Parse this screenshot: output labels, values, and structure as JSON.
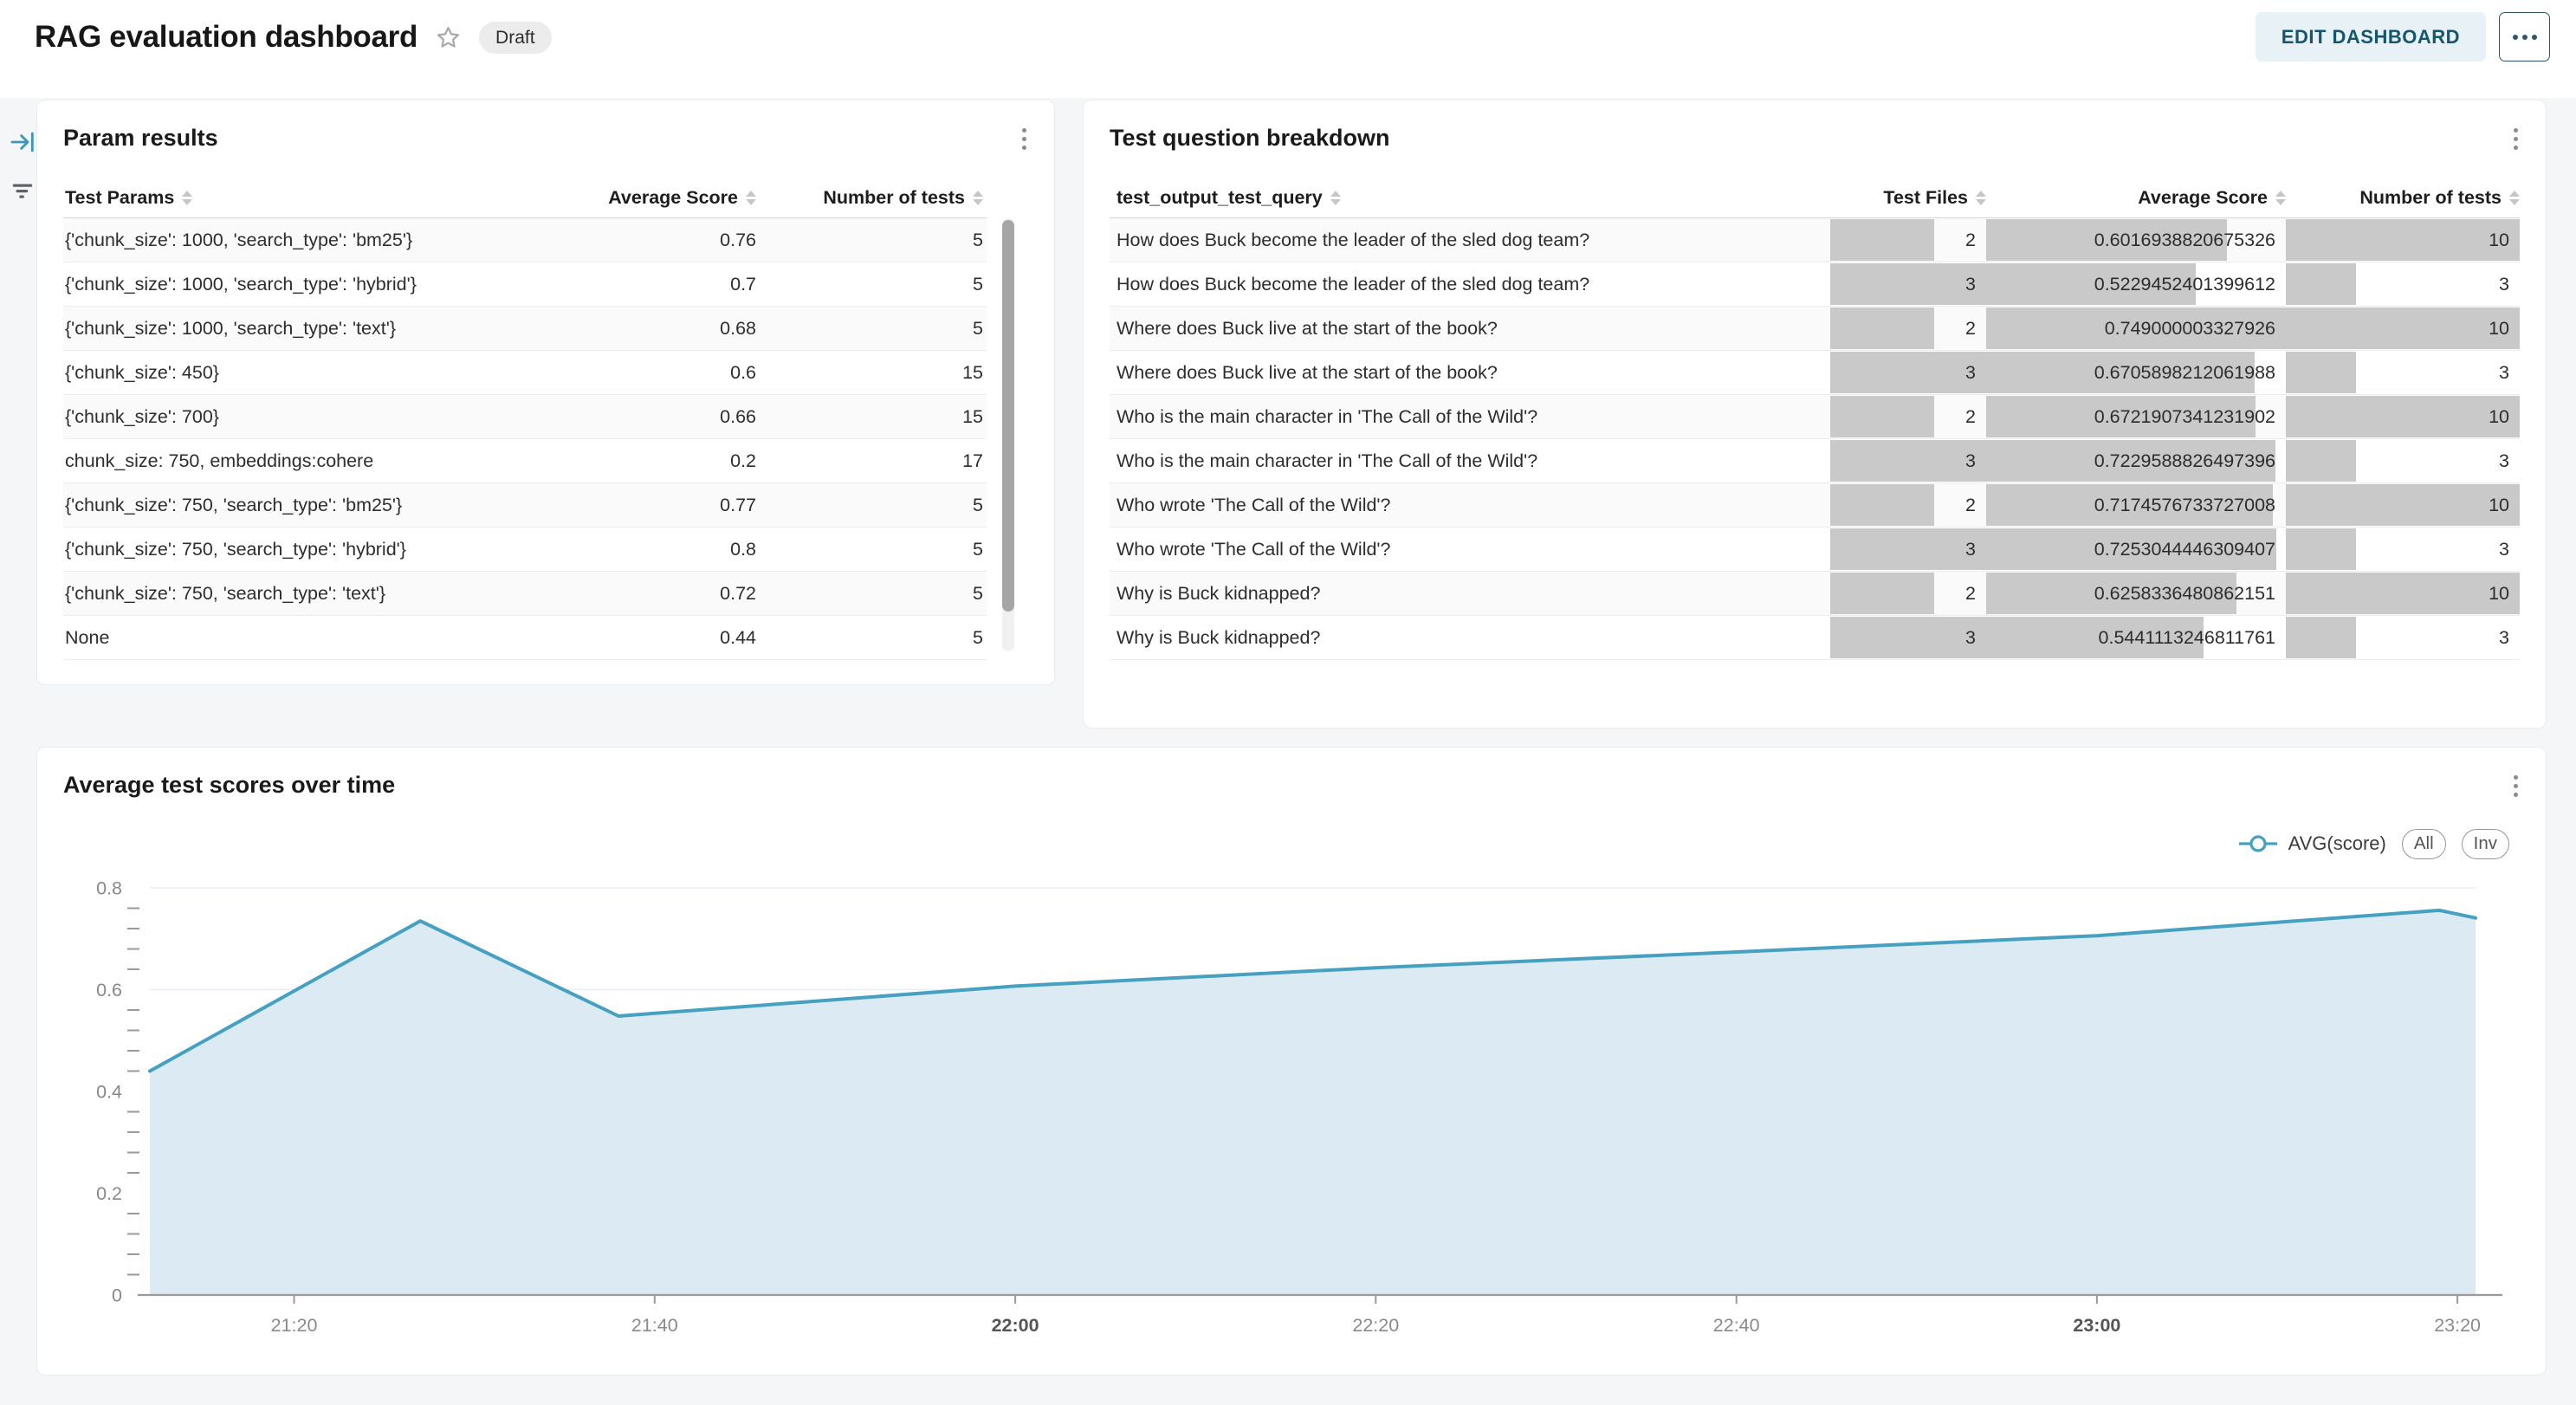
{
  "header": {
    "title": "RAG evaluation dashboard",
    "status_badge": "Draft",
    "edit_button": "EDIT DASHBOARD",
    "more_button": "more-options"
  },
  "sidebar": {
    "icons": [
      {
        "name": "collapse-panel-icon"
      },
      {
        "name": "filter-icon"
      }
    ]
  },
  "param_results": {
    "title": "Param results",
    "columns": {
      "c1": "Test Params",
      "c2": "Average Score",
      "c3": "Number of tests"
    },
    "rows": [
      {
        "params": "{'chunk_size': 1000, 'search_type': 'bm25'}",
        "avg_score": "0.76",
        "num_tests": "5"
      },
      {
        "params": "{'chunk_size': 1000, 'search_type': 'hybrid'}",
        "avg_score": "0.7",
        "num_tests": "5"
      },
      {
        "params": "{'chunk_size': 1000, 'search_type': 'text'}",
        "avg_score": "0.68",
        "num_tests": "5"
      },
      {
        "params": "{'chunk_size': 450}",
        "avg_score": "0.6",
        "num_tests": "15"
      },
      {
        "params": "{'chunk_size': 700}",
        "avg_score": "0.66",
        "num_tests": "15"
      },
      {
        "params": "chunk_size: 750, embeddings:cohere",
        "avg_score": "0.2",
        "num_tests": "17"
      },
      {
        "params": "{'chunk_size': 750, 'search_type': 'bm25'}",
        "avg_score": "0.77",
        "num_tests": "5"
      },
      {
        "params": "{'chunk_size': 750, 'search_type': 'hybrid'}",
        "avg_score": "0.8",
        "num_tests": "5"
      },
      {
        "params": "{'chunk_size': 750, 'search_type': 'text'}",
        "avg_score": "0.72",
        "num_tests": "5"
      },
      {
        "params": "None",
        "avg_score": "0.44",
        "num_tests": "5"
      }
    ]
  },
  "test_question_breakdown": {
    "title": "Test question breakdown",
    "columns": {
      "c1": "test_output_test_query",
      "c2": "Test Files",
      "c3": "Average Score",
      "c4": "Number of tests"
    },
    "bar_max": {
      "test_files": 3,
      "avg_score": 0.749000003327926,
      "num_tests": 10
    },
    "rows": [
      {
        "query": "How does Buck become the leader of the sled dog team?",
        "test_files": "2",
        "avg_score": "0.6016938820675326",
        "num_tests": "10"
      },
      {
        "query": "How does Buck become the leader of the sled dog team?",
        "test_files": "3",
        "avg_score": "0.5229452401399612",
        "num_tests": "3"
      },
      {
        "query": "Where does Buck live at the start of the book?",
        "test_files": "2",
        "avg_score": "0.749000003327926",
        "num_tests": "10"
      },
      {
        "query": "Where does Buck live at the start of the book?",
        "test_files": "3",
        "avg_score": "0.6705898212061988",
        "num_tests": "3"
      },
      {
        "query": "Who is the main character in 'The Call of the Wild'?",
        "test_files": "2",
        "avg_score": "0.6721907341231902",
        "num_tests": "10"
      },
      {
        "query": "Who is the main character in 'The Call of the Wild'?",
        "test_files": "3",
        "avg_score": "0.7229588826497396",
        "num_tests": "3"
      },
      {
        "query": "Who wrote 'The Call of the Wild'?",
        "test_files": "2",
        "avg_score": "0.7174576733727008",
        "num_tests": "10"
      },
      {
        "query": "Who wrote 'The Call of the Wild'?",
        "test_files": "3",
        "avg_score": "0.7253044446309407",
        "num_tests": "3"
      },
      {
        "query": "Why is Buck kidnapped?",
        "test_files": "2",
        "avg_score": "0.6258336480862151",
        "num_tests": "10"
      },
      {
        "query": "Why is Buck kidnapped?",
        "test_files": "3",
        "avg_score": "0.5441113246811761",
        "num_tests": "3"
      }
    ]
  },
  "chart_data": {
    "type": "area",
    "title": "Average test scores over time",
    "legend": {
      "series_label": "AVG(score)",
      "buttons": [
        "All",
        "Inv"
      ]
    },
    "xlim": [
      21.2,
      23.35
    ],
    "ylim": [
      0,
      0.8
    ],
    "y_ticks": [
      0,
      0.2,
      0.4,
      0.6,
      0.8
    ],
    "y_minor_step": 0.04,
    "x_ticks": [
      {
        "label": "21:20",
        "hour": 21.3333,
        "bold": false
      },
      {
        "label": "21:40",
        "hour": 21.6667,
        "bold": false
      },
      {
        "label": "22:00",
        "hour": 22.0,
        "bold": true
      },
      {
        "label": "22:20",
        "hour": 22.3333,
        "bold": false
      },
      {
        "label": "22:40",
        "hour": 22.6667,
        "bold": false
      },
      {
        "label": "23:00",
        "hour": 23.0,
        "bold": true
      },
      {
        "label": "23:20",
        "hour": 23.3333,
        "bold": false
      }
    ],
    "series": [
      {
        "name": "AVG(score)",
        "points": [
          [
            21.2,
            0.44
          ],
          [
            21.45,
            0.735
          ],
          [
            21.6333,
            0.548
          ],
          [
            22.0,
            0.607
          ],
          [
            22.3333,
            0.643
          ],
          [
            22.6667,
            0.674
          ],
          [
            23.0,
            0.706
          ],
          [
            23.3167,
            0.756
          ],
          [
            23.35,
            0.741
          ]
        ]
      }
    ],
    "grid": true,
    "legend_position": "top-right"
  },
  "colors": {
    "accent_teal": "#15566f",
    "edit_button_bg": "#e8f2f6",
    "chart_line": "#45a0c2",
    "chart_fill": "#dbeaf3",
    "data_bar": "#c9c9c9",
    "page_bg": "#f5f6f7",
    "grid_line": "#e8edf4",
    "sidebar_icon_blue": "#3d96b8"
  }
}
